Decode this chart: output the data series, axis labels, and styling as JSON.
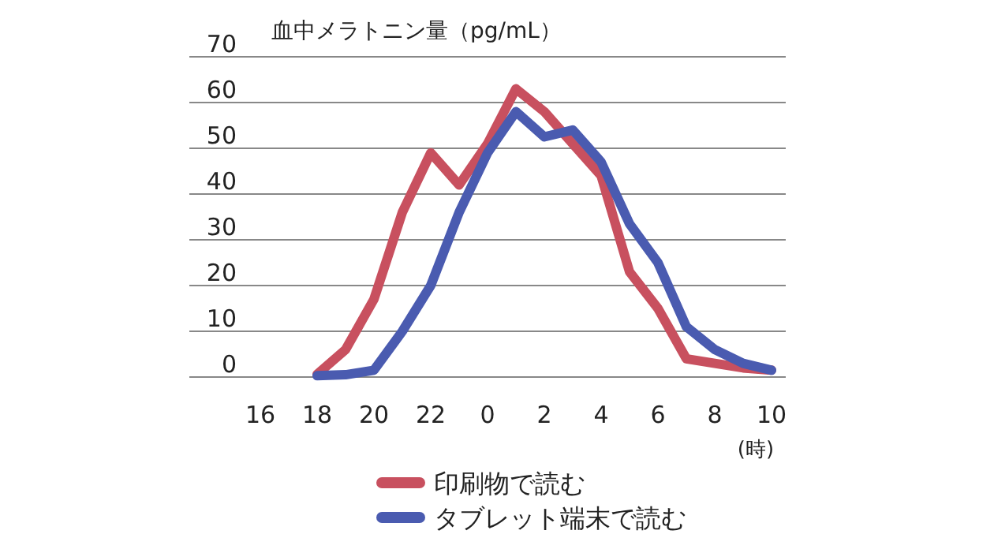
{
  "chart_data": {
    "type": "line",
    "ylabel": "血中メラトニン量（pg/mL）",
    "xlabel": "(時)",
    "categories": [
      "16",
      null,
      "18",
      null,
      "20",
      null,
      "22",
      null,
      "0",
      null,
      "2",
      null,
      "4",
      null,
      "6",
      null,
      "8",
      null,
      "10"
    ],
    "series": [
      {
        "name": "印刷物で読む",
        "color": "#c8505f",
        "values": [
          null,
          null,
          0.6,
          6,
          17,
          36,
          49,
          42,
          51,
          63,
          58,
          51,
          44,
          23,
          15,
          4,
          3,
          2,
          1.5
        ]
      },
      {
        "name": "タブレット端末で読む",
        "color": "#4a5bb0",
        "values": [
          null,
          null,
          0.3,
          0.5,
          1.5,
          10,
          20,
          36,
          49,
          58,
          52.5,
          54,
          47,
          33.5,
          25,
          11,
          6,
          3,
          1.5
        ]
      }
    ],
    "ylim": [
      0,
      70
    ],
    "yticks": [
      0,
      10,
      20,
      30,
      40,
      50,
      60,
      70
    ],
    "grid": "y",
    "legend": "bottom"
  }
}
